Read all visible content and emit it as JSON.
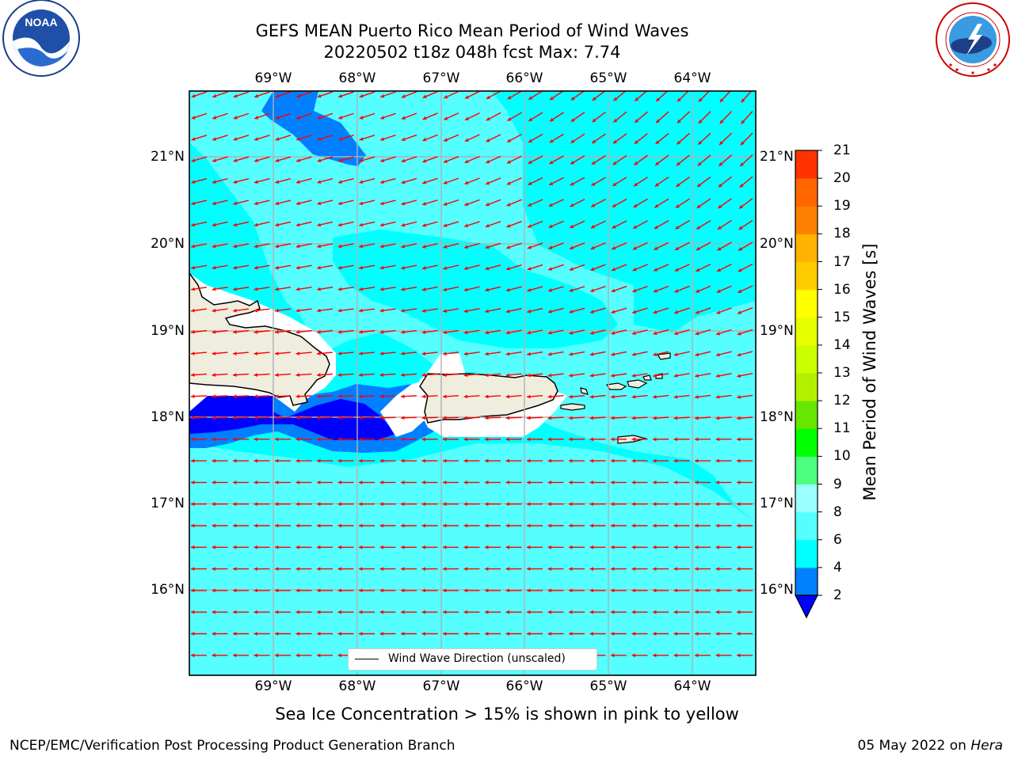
{
  "title": {
    "line1": "GEFS MEAN Puerto Rico Mean Period of Wind Waves",
    "line2": "20220502 t18z 048h fcst   Max: 7.74"
  },
  "map": {
    "lon_labels": [
      "69°W",
      "68°W",
      "67°W",
      "66°W",
      "65°W",
      "64°W"
    ],
    "lat_labels": [
      "21°N",
      "20°N",
      "19°N",
      "18°N",
      "17°N",
      "16°N"
    ],
    "legend": "Wind Wave Direction (unscaled)",
    "colors": {
      "ocean_6_8": "#00ffff",
      "ocean_8_9": "#55ffff",
      "ocean_4_6": "#0080ff",
      "ocean_2_4": "#0000ff",
      "land": "#efedde",
      "arrows": "#ff0000"
    }
  },
  "colorbar": {
    "label": "Mean Period of Wind Waves [s]",
    "ticks": [
      "2",
      "4",
      "6",
      "8",
      "9",
      "10",
      "11",
      "12",
      "13",
      "14",
      "15",
      "16",
      "17",
      "18",
      "19",
      "20",
      "21"
    ],
    "colors": [
      "#0080ff",
      "#00ffff",
      "#55ffff",
      "#99ffff",
      "#4cff80",
      "#00ff00",
      "#66e600",
      "#b3f000",
      "#ccff00",
      "#e6ff00",
      "#ffff00",
      "#ffcc00",
      "#ffb300",
      "#ff8000",
      "#ff6600",
      "#ff3300",
      "#ff0000"
    ],
    "extend_color": "#0000ff"
  },
  "note": "Sea Ice Concentration > 15% is shown in pink to yellow",
  "footer": {
    "left": "NCEP/EMC/Verification Post Processing Product Generation Branch",
    "right_date": "05 May 2022 on",
    "right_host": "Hera"
  },
  "logos": {
    "noaa_text": "NOAA",
    "nws_text": "NATIONAL WEATHER SERVICE"
  }
}
